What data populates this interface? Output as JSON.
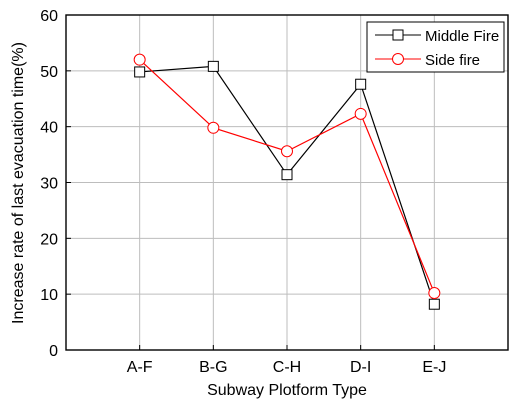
{
  "chart_data": {
    "type": "line",
    "categories": [
      "A-F",
      "B-G",
      "C-H",
      "D-I",
      "E-J"
    ],
    "series": [
      {
        "name": "Middle Fire",
        "values": [
          49.8,
          50.8,
          31.4,
          47.6,
          8.2
        ],
        "color": "#000000",
        "marker": "square"
      },
      {
        "name": "Side fire",
        "values": [
          52.0,
          39.8,
          35.6,
          42.3,
          10.2
        ],
        "color": "#ff0000",
        "marker": "circle"
      }
    ],
    "xlabel": "Subway Plotform Type",
    "ylabel": "Increase rate of last evacuation time(%)",
    "ylim": [
      0,
      60
    ],
    "yticks": [
      0,
      10,
      20,
      30,
      40,
      50,
      60
    ],
    "grid": true,
    "legend_position": "top-right"
  }
}
